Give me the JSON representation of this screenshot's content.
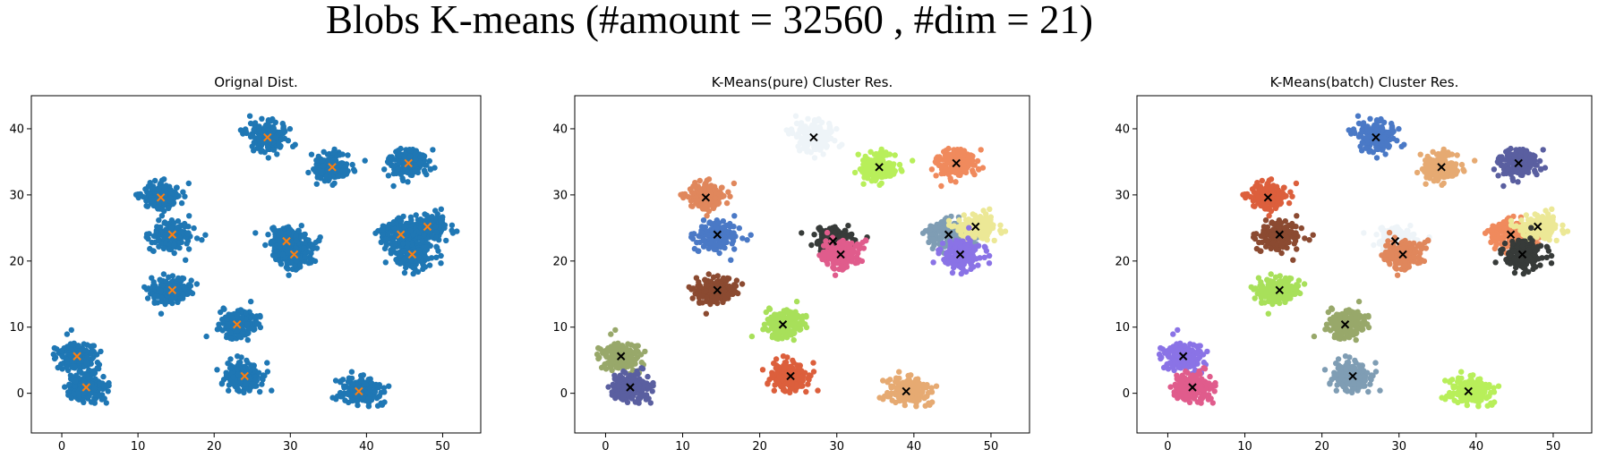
{
  "suptitle": "Blobs K-means (#amount = 32560 , #dim = 21)",
  "chart_data": [
    {
      "type": "scatter",
      "title": "Orignal Dist.",
      "xlim": [
        -4,
        55
      ],
      "ylim": [
        -6,
        45
      ],
      "xticks": [
        0,
        10,
        20,
        30,
        40,
        50
      ],
      "yticks": [
        0,
        10,
        20,
        30,
        40
      ],
      "point_color": "#1f77b4",
      "center_marker": "x",
      "center_color": "#ff7f0e",
      "clusters": [
        {
          "x": 27.0,
          "y": 38.7,
          "color": "#1f77b4"
        },
        {
          "x": 35.5,
          "y": 34.2,
          "color": "#1f77b4"
        },
        {
          "x": 45.5,
          "y": 34.8,
          "color": "#1f77b4"
        },
        {
          "x": 13.0,
          "y": 29.6,
          "color": "#1f77b4"
        },
        {
          "x": 14.5,
          "y": 24.0,
          "color": "#1f77b4"
        },
        {
          "x": 29.5,
          "y": 23.0,
          "color": "#1f77b4"
        },
        {
          "x": 30.5,
          "y": 21.0,
          "color": "#1f77b4"
        },
        {
          "x": 44.5,
          "y": 24.0,
          "color": "#1f77b4"
        },
        {
          "x": 48.0,
          "y": 25.2,
          "color": "#1f77b4"
        },
        {
          "x": 46.0,
          "y": 21.0,
          "color": "#1f77b4"
        },
        {
          "x": 14.5,
          "y": 15.6,
          "color": "#1f77b4"
        },
        {
          "x": 23.0,
          "y": 10.4,
          "color": "#1f77b4"
        },
        {
          "x": 2.0,
          "y": 5.6,
          "color": "#1f77b4"
        },
        {
          "x": 3.2,
          "y": 0.9,
          "color": "#1f77b4"
        },
        {
          "x": 24.0,
          "y": 2.6,
          "color": "#1f77b4"
        },
        {
          "x": 39.0,
          "y": 0.3,
          "color": "#1f77b4"
        }
      ]
    },
    {
      "type": "scatter",
      "title": "K-Means(pure) Cluster Res.",
      "xlim": [
        -4,
        55
      ],
      "ylim": [
        -6,
        45
      ],
      "xticks": [
        0,
        10,
        20,
        30,
        40,
        50
      ],
      "yticks": [
        0,
        10,
        20,
        30,
        40
      ],
      "center_marker": "x",
      "center_color": "#000000",
      "clusters": [
        {
          "x": 27.0,
          "y": 38.7,
          "color": "#eef4f8"
        },
        {
          "x": 35.5,
          "y": 34.2,
          "color": "#b8ef5a"
        },
        {
          "x": 45.5,
          "y": 34.8,
          "color": "#f08a5d"
        },
        {
          "x": 13.0,
          "y": 29.6,
          "color": "#e0875c"
        },
        {
          "x": 14.5,
          "y": 24.0,
          "color": "#4a79c6"
        },
        {
          "x": 29.5,
          "y": 23.0,
          "color": "#373b39"
        },
        {
          "x": 30.5,
          "y": 21.0,
          "color": "#e05c8c"
        },
        {
          "x": 44.5,
          "y": 24.0,
          "color": "#7f9db4"
        },
        {
          "x": 48.0,
          "y": 25.2,
          "color": "#ece896"
        },
        {
          "x": 46.0,
          "y": 21.0,
          "color": "#8a73e6"
        },
        {
          "x": 14.5,
          "y": 15.6,
          "color": "#8b4a31"
        },
        {
          "x": 23.0,
          "y": 10.4,
          "color": "#a8e05a"
        },
        {
          "x": 2.0,
          "y": 5.6,
          "color": "#98a86a"
        },
        {
          "x": 3.2,
          "y": 0.9,
          "color": "#5a5fa0"
        },
        {
          "x": 24.0,
          "y": 2.6,
          "color": "#dc5f3c"
        },
        {
          "x": 39.0,
          "y": 0.3,
          "color": "#e6aa72"
        }
      ]
    },
    {
      "type": "scatter",
      "title": "K-Means(batch) Cluster Res.",
      "xlim": [
        -4,
        55
      ],
      "ylim": [
        -6,
        45
      ],
      "xticks": [
        0,
        10,
        20,
        30,
        40,
        50
      ],
      "yticks": [
        0,
        10,
        20,
        30,
        40
      ],
      "center_marker": "x",
      "center_color": "#000000",
      "clusters": [
        {
          "x": 27.0,
          "y": 38.7,
          "color": "#4a79c6"
        },
        {
          "x": 35.5,
          "y": 34.2,
          "color": "#e6aa72"
        },
        {
          "x": 45.5,
          "y": 34.8,
          "color": "#5a5fa0"
        },
        {
          "x": 13.0,
          "y": 29.6,
          "color": "#dc5f3c"
        },
        {
          "x": 14.5,
          "y": 24.0,
          "color": "#8b4a31"
        },
        {
          "x": 29.5,
          "y": 23.0,
          "color": "#eef4f8"
        },
        {
          "x": 30.5,
          "y": 21.0,
          "color": "#e0875c"
        },
        {
          "x": 44.5,
          "y": 24.0,
          "color": "#f08a5d"
        },
        {
          "x": 48.0,
          "y": 25.2,
          "color": "#ece896"
        },
        {
          "x": 46.0,
          "y": 21.0,
          "color": "#373b39"
        },
        {
          "x": 14.5,
          "y": 15.6,
          "color": "#a8e05a"
        },
        {
          "x": 23.0,
          "y": 10.4,
          "color": "#98a86a"
        },
        {
          "x": 2.0,
          "y": 5.6,
          "color": "#8a73e6"
        },
        {
          "x": 3.2,
          "y": 0.9,
          "color": "#e05c8c"
        },
        {
          "x": 24.0,
          "y": 2.6,
          "color": "#7f9db4"
        },
        {
          "x": 39.0,
          "y": 0.3,
          "color": "#b8ef5a"
        }
      ]
    }
  ]
}
